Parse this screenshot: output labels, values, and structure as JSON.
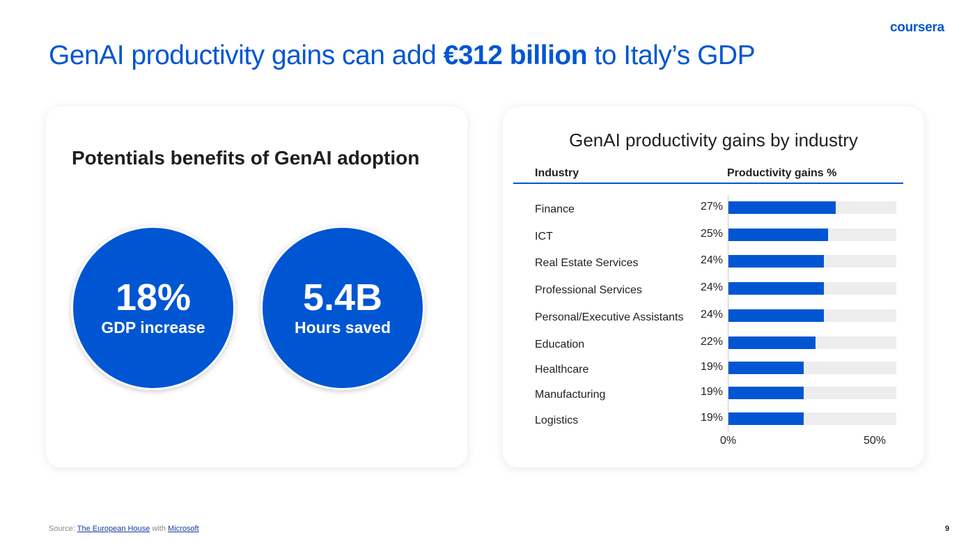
{
  "logo": "coursera",
  "title": {
    "pre": "GenAI productivity gains can add ",
    "bold": "€312 billion",
    "post": " to Italy’s GDP"
  },
  "left": {
    "heading": "Potentials benefits of GenAI adoption",
    "stats": [
      {
        "value": "18%",
        "label": "GDP increase"
      },
      {
        "value": "5.4B",
        "label": "Hours saved"
      }
    ]
  },
  "chart_data": {
    "type": "bar",
    "orientation": "horizontal",
    "title": "GenAI productivity gains by industry",
    "col_headers": [
      "Industry",
      "Productivity gains %"
    ],
    "categories": [
      "Finance",
      "ICT",
      "Real Estate Services",
      "Professional Services",
      "Personal/Executive Assistants",
      "Education",
      "Healthcare",
      "Manufacturing",
      "Logistics"
    ],
    "values": [
      27,
      25,
      24,
      24,
      24,
      22,
      19,
      19,
      19
    ],
    "value_labels": [
      "27%",
      "25%",
      "24%",
      "24%",
      "24%",
      "22%",
      "19%",
      "19%",
      "19%"
    ],
    "xticks": [
      "0%",
      "50%"
    ],
    "xlim": [
      0,
      50
    ],
    "color": "#0056d2"
  },
  "footer": {
    "source_prefix": "Source: ",
    "link1": "The European House",
    "mid": " with ",
    "link2": "Microsoft",
    "page": "9"
  }
}
